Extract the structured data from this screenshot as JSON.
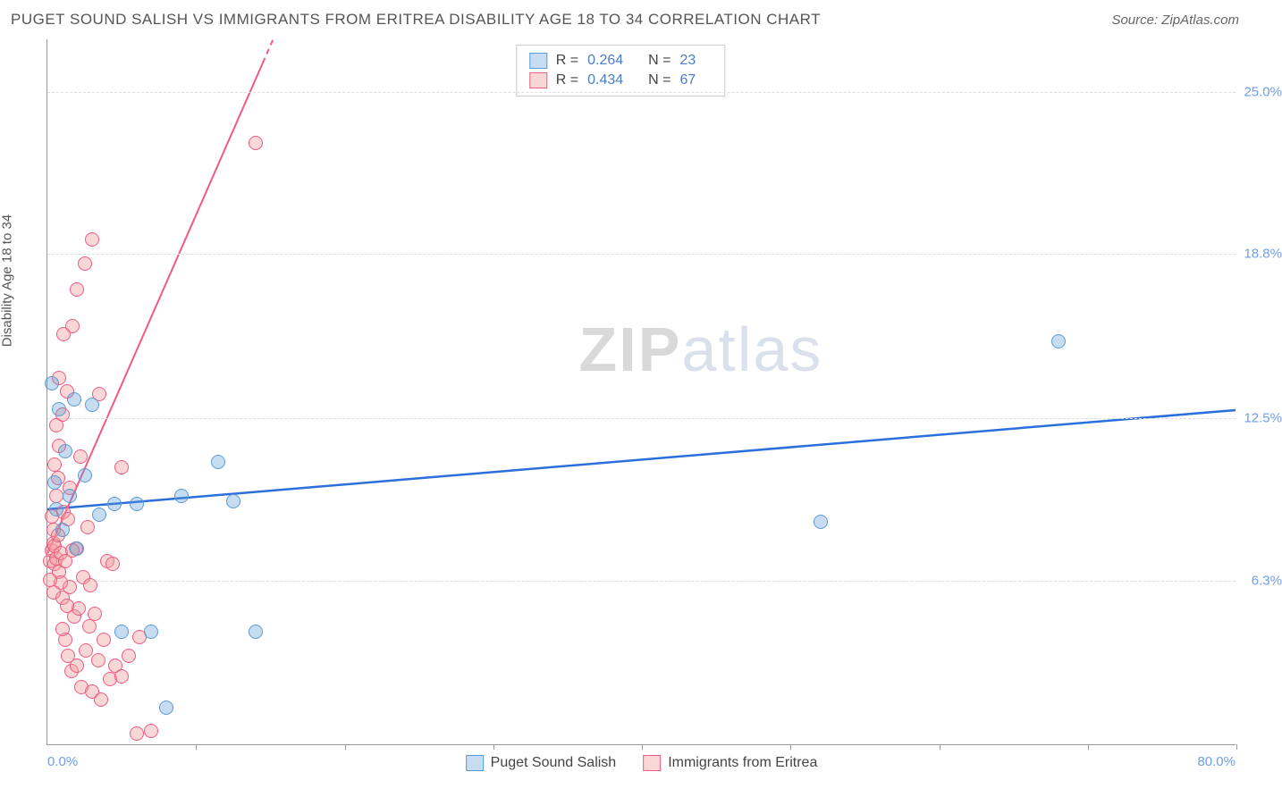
{
  "title": "PUGET SOUND SALISH VS IMMIGRANTS FROM ERITREA DISABILITY AGE 18 TO 34 CORRELATION CHART",
  "source": "Source: ZipAtlas.com",
  "chart": {
    "type": "scatter",
    "background_color": "#ffffff",
    "grid_color": "#dddddd",
    "axis_color": "#999999",
    "ylabel": "Disability Age 18 to 34",
    "ylabel_fontsize": 15,
    "xlim": [
      0,
      80
    ],
    "ylim": [
      0,
      27
    ],
    "x_tick_positions": [
      10,
      20,
      30,
      40,
      50,
      60,
      70,
      80
    ],
    "x_start_label": "0.0%",
    "x_end_label": "80.0%",
    "y_gridlines": [
      {
        "value": 6.3,
        "label": "6.3%"
      },
      {
        "value": 12.5,
        "label": "12.5%"
      },
      {
        "value": 18.8,
        "label": "18.8%"
      },
      {
        "value": 25.0,
        "label": "25.0%"
      }
    ],
    "axis_label_color": "#6d9eeb",
    "marker_radius": 8,
    "marker_opacity": 0.55,
    "series": [
      {
        "name": "Puget Sound Salish",
        "color": "#5b9bd5",
        "fill": "rgba(91,155,213,0.35)",
        "border": "#5b9bd5",
        "r": 0.264,
        "n": 23,
        "regression": {
          "x1": 0,
          "y1": 9.0,
          "x2": 80,
          "y2": 12.8,
          "width": 2.5
        },
        "points": [
          [
            0.3,
            13.8
          ],
          [
            0.5,
            10.0
          ],
          [
            0.8,
            12.8
          ],
          [
            1.0,
            8.2
          ],
          [
            1.2,
            11.2
          ],
          [
            1.5,
            9.5
          ],
          [
            1.8,
            13.2
          ],
          [
            2.0,
            7.5
          ],
          [
            3.0,
            13.0
          ],
          [
            4.5,
            9.2
          ],
          [
            5.0,
            4.3
          ],
          [
            6.0,
            9.2
          ],
          [
            7.0,
            4.3
          ],
          [
            8.0,
            1.4
          ],
          [
            9.0,
            9.5
          ],
          [
            11.5,
            10.8
          ],
          [
            12.5,
            9.3
          ],
          [
            14.0,
            4.3
          ],
          [
            52.0,
            8.5
          ],
          [
            68.0,
            15.4
          ],
          [
            2.5,
            10.3
          ],
          [
            3.5,
            8.8
          ],
          [
            0.6,
            9.0
          ]
        ]
      },
      {
        "name": "Immigrants from Eritrea",
        "color": "#e57373",
        "fill": "rgba(239,154,154,0.4)",
        "border": "#ef5b82",
        "r": 0.434,
        "n": 67,
        "regression": {
          "x1": 0,
          "y1": 7.3,
          "x2": 15.2,
          "y2": 27,
          "width": 2,
          "dash_from_x": 14.5
        },
        "points": [
          [
            0.2,
            7.0
          ],
          [
            0.3,
            7.4
          ],
          [
            0.4,
            7.7
          ],
          [
            0.4,
            8.2
          ],
          [
            0.5,
            6.9
          ],
          [
            0.5,
            7.6
          ],
          [
            0.6,
            9.5
          ],
          [
            0.6,
            7.1
          ],
          [
            0.7,
            10.2
          ],
          [
            0.7,
            8.0
          ],
          [
            0.8,
            11.4
          ],
          [
            0.8,
            6.6
          ],
          [
            0.9,
            7.3
          ],
          [
            1.0,
            12.6
          ],
          [
            1.0,
            5.6
          ],
          [
            1.1,
            8.9
          ],
          [
            1.2,
            7.0
          ],
          [
            1.2,
            4.0
          ],
          [
            1.3,
            13.5
          ],
          [
            1.4,
            3.4
          ],
          [
            1.5,
            9.8
          ],
          [
            1.5,
            6.0
          ],
          [
            1.6,
            2.8
          ],
          [
            1.7,
            16.0
          ],
          [
            1.8,
            4.9
          ],
          [
            1.9,
            7.5
          ],
          [
            2.0,
            17.4
          ],
          [
            2.0,
            3.0
          ],
          [
            2.1,
            5.2
          ],
          [
            2.2,
            11.0
          ],
          [
            2.3,
            2.2
          ],
          [
            2.4,
            6.4
          ],
          [
            2.5,
            18.4
          ],
          [
            2.6,
            3.6
          ],
          [
            2.8,
            4.5
          ],
          [
            3.0,
            19.3
          ],
          [
            3.0,
            2.0
          ],
          [
            3.2,
            5.0
          ],
          [
            3.4,
            3.2
          ],
          [
            3.5,
            13.4
          ],
          [
            3.6,
            1.7
          ],
          [
            4.0,
            7.0
          ],
          [
            4.2,
            2.5
          ],
          [
            4.4,
            6.9
          ],
          [
            4.6,
            3.0
          ],
          [
            5.0,
            2.6
          ],
          [
            5.0,
            10.6
          ],
          [
            5.5,
            3.4
          ],
          [
            6.0,
            0.4
          ],
          [
            6.2,
            4.1
          ],
          [
            7.0,
            0.5
          ],
          [
            1.0,
            4.4
          ],
          [
            1.3,
            5.3
          ],
          [
            0.9,
            6.2
          ],
          [
            2.7,
            8.3
          ],
          [
            3.8,
            4.0
          ],
          [
            0.5,
            10.7
          ],
          [
            0.8,
            14.0
          ],
          [
            1.1,
            15.7
          ],
          [
            14.0,
            23.0
          ],
          [
            0.3,
            8.7
          ],
          [
            0.6,
            12.2
          ],
          [
            0.4,
            5.8
          ],
          [
            1.7,
            7.4
          ],
          [
            2.9,
            6.1
          ],
          [
            0.2,
            6.3
          ],
          [
            1.4,
            8.6
          ]
        ]
      }
    ],
    "legend_top": [
      {
        "swatch_fill": "rgba(91,155,213,0.35)",
        "swatch_border": "#5b9bd5",
        "r_label": "R =",
        "r_value": "0.264",
        "n_label": "N =",
        "n_value": "23"
      },
      {
        "swatch_fill": "rgba(239,154,154,0.4)",
        "swatch_border": "#ef5b82",
        "r_label": "R =",
        "r_value": "0.434",
        "n_label": "N =",
        "n_value": "67"
      }
    ],
    "legend_bottom": [
      {
        "swatch_fill": "rgba(91,155,213,0.35)",
        "swatch_border": "#5b9bd5",
        "label": "Puget Sound Salish"
      },
      {
        "swatch_fill": "rgba(239,154,154,0.4)",
        "swatch_border": "#ef5b82",
        "label": "Immigrants from Eritrea"
      }
    ]
  },
  "watermark": {
    "text_bold": "ZIP",
    "text_light": "atlas",
    "color_bold": "rgba(120,120,120,0.28)",
    "color_light": "rgba(150,170,200,0.35)"
  }
}
